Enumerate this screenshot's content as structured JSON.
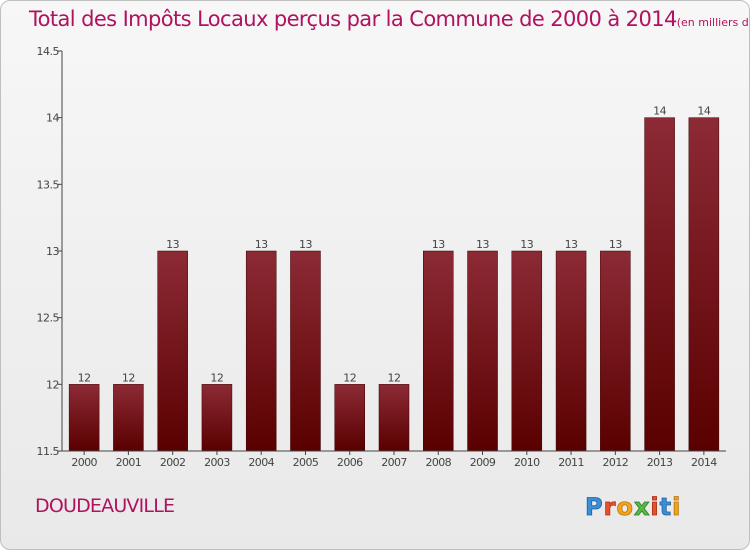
{
  "title": "Total des Impôts Locaux perçus par la Commune de 2000 à 2014",
  "title_unit": "(en milliers d'€)",
  "commune": "DOUDEAUVILLE",
  "logo_text": "Proxiti",
  "colors": {
    "title": "#b0125f",
    "bar_top": "#8c2a35",
    "bar_bottom": "#5a0000",
    "axis": "#444444"
  },
  "chart_data": {
    "type": "bar",
    "categories": [
      "2000",
      "2001",
      "2002",
      "2003",
      "2004",
      "2005",
      "2006",
      "2007",
      "2008",
      "2009",
      "2010",
      "2011",
      "2012",
      "2013",
      "2014"
    ],
    "values": [
      12,
      12,
      13,
      12,
      13,
      13,
      12,
      12,
      13,
      13,
      13,
      13,
      13,
      14,
      14
    ],
    "ylim": [
      11.5,
      14.5
    ],
    "yticks": [
      11.5,
      12,
      12.5,
      13,
      13.5,
      14,
      14.5
    ],
    "ytick_labels": [
      "11.5",
      "12",
      "12.5",
      "13",
      "13.5",
      "14",
      "14.5"
    ],
    "grid": false,
    "xlabel": "",
    "ylabel": ""
  }
}
